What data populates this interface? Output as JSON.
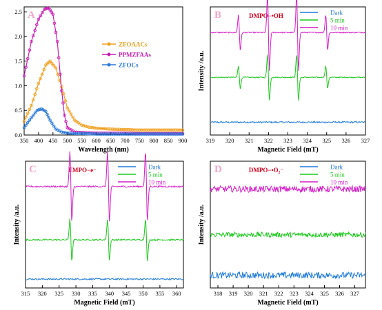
{
  "chart_data": [
    {
      "panel": "A",
      "type": "line",
      "xlabel": "Wavelength (nm)",
      "ylabel": "",
      "xlim": [
        350,
        900
      ],
      "ylim": [
        0,
        2.6
      ],
      "xticks": [
        350,
        400,
        450,
        500,
        550,
        600,
        650,
        700,
        750,
        800,
        850,
        900
      ],
      "yticks": [
        0.0,
        0.5,
        1.0,
        1.5,
        2.0,
        2.5
      ],
      "ytick_labels": [
        "0.0",
        "0.5",
        "1.0",
        "1.5",
        "2.0",
        "2.5"
      ],
      "legend_position": "right",
      "series": [
        {
          "name": "ZFOAACs",
          "color": "#f0a020",
          "marker": "circle",
          "x": [
            350,
            375,
            400,
            425,
            440,
            460,
            480,
            500,
            525,
            550,
            575,
            600,
            650,
            700,
            750,
            800,
            850,
            900
          ],
          "values": [
            0.28,
            0.6,
            1.05,
            1.42,
            1.5,
            1.36,
            0.98,
            0.55,
            0.3,
            0.2,
            0.16,
            0.14,
            0.12,
            0.11,
            0.1,
            0.1,
            0.1,
            0.1
          ]
        },
        {
          "name": "PPMZFAAs",
          "color": "#c81eb4",
          "marker": "circle",
          "x": [
            350,
            375,
            400,
            420,
            435,
            450,
            465,
            480,
            490,
            500,
            525,
            550,
            600,
            650,
            700,
            750,
            800,
            850,
            900
          ],
          "values": [
            1.2,
            1.9,
            2.35,
            2.55,
            2.58,
            2.45,
            1.9,
            0.9,
            0.4,
            0.15,
            0.06,
            0.05,
            0.04,
            0.04,
            0.04,
            0.03,
            0.03,
            0.03,
            0.03
          ]
        },
        {
          "name": "ZFOCs",
          "color": "#2a78d8",
          "marker": "circle",
          "x": [
            350,
            375,
            395,
            410,
            425,
            440,
            460,
            480,
            500,
            525,
            550,
            600,
            650,
            700,
            750,
            800,
            850,
            900
          ],
          "values": [
            0.15,
            0.35,
            0.5,
            0.53,
            0.48,
            0.3,
            0.12,
            0.06,
            0.04,
            0.03,
            0.03,
            0.02,
            0.02,
            0.02,
            0.02,
            0.02,
            0.02,
            0.02
          ]
        }
      ]
    },
    {
      "panel": "B",
      "type": "line",
      "annotation": "DMPO−•OH",
      "xlabel": "Magnetic Field (mT)",
      "ylabel": "Intensity /a.u.",
      "xlim": [
        319,
        327
      ],
      "xticks": [
        319,
        320,
        321,
        322,
        323,
        324,
        325,
        326,
        327
      ],
      "legend_position": "top-right",
      "series": [
        {
          "name": "Dark",
          "color": "#1e7ad8",
          "baseline": 0.1,
          "noise": 0.006,
          "peaks": []
        },
        {
          "name": "5 min",
          "color": "#1cc81c",
          "baseline": 0.45,
          "noise": 0.004,
          "peaks": [
            {
              "x": 320.5,
              "amp": 0.09
            },
            {
              "x": 322.0,
              "amp": 0.18
            },
            {
              "x": 323.5,
              "amp": 0.18
            },
            {
              "x": 325.0,
              "amp": 0.09
            }
          ]
        },
        {
          "name": "10 min",
          "color": "#d41ec8",
          "baseline": 0.8,
          "noise": 0.004,
          "peaks": [
            {
              "x": 320.5,
              "amp": 0.14
            },
            {
              "x": 322.0,
              "amp": 0.3
            },
            {
              "x": 323.5,
              "amp": 0.3
            },
            {
              "x": 325.0,
              "amp": 0.14
            }
          ]
        }
      ]
    },
    {
      "panel": "C",
      "type": "line",
      "annotation": "EMPO−e⁻",
      "xlabel": "Magnetic Field (mT)",
      "ylabel": "Intensity /a.u.",
      "xlim": [
        315,
        362
      ],
      "xticks": [
        315,
        320,
        325,
        330,
        335,
        340,
        345,
        350,
        355,
        360
      ],
      "legend_position": "top-right",
      "series": [
        {
          "name": "Dark",
          "color": "#1e7ad8",
          "baseline": 0.07,
          "noise": 0.006,
          "peaks": []
        },
        {
          "name": "5 min",
          "color": "#1cc81c",
          "baseline": 0.38,
          "noise": 0.006,
          "peaks": [
            {
              "x": 328.5,
              "amp": 0.17
            },
            {
              "x": 339.7,
              "amp": 0.16
            },
            {
              "x": 351.0,
              "amp": 0.17
            }
          ]
        },
        {
          "name": "10 min",
          "color": "#d41ec8",
          "baseline": 0.8,
          "noise": 0.006,
          "peaks": [
            {
              "x": 328.5,
              "amp": 0.28
            },
            {
              "x": 339.7,
              "amp": 0.28
            },
            {
              "x": 351.0,
              "amp": 0.28
            }
          ]
        }
      ]
    },
    {
      "panel": "D",
      "type": "line",
      "annotation": "DMPO−•O₂⁻",
      "xlabel": "Magnetic Field (mT)",
      "ylabel": "Intensity /a.u.",
      "xlim": [
        317.5,
        327.7
      ],
      "xticks": [
        318,
        319,
        320,
        321,
        322,
        323,
        324,
        325,
        326,
        327
      ],
      "legend_position": "top-right",
      "series": [
        {
          "name": "Dark",
          "color": "#1e7ad8",
          "baseline": 0.1,
          "noise": 0.025,
          "peaks": []
        },
        {
          "name": "5 min",
          "color": "#1cc81c",
          "baseline": 0.42,
          "noise": 0.02,
          "peaks": []
        },
        {
          "name": "10 min",
          "color": "#d41ec8",
          "baseline": 0.78,
          "noise": 0.025,
          "peaks": []
        }
      ]
    }
  ]
}
